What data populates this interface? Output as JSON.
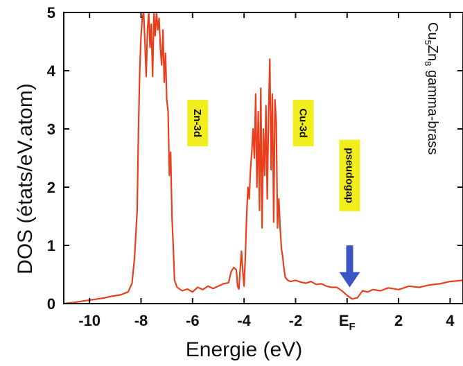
{
  "chart_data": {
    "type": "line",
    "title": "",
    "xlabel": "Energie (eV)",
    "ylabel": "DOS (états/eV.atom)",
    "xlim": [
      -11,
      4.5
    ],
    "ylim": [
      0,
      5
    ],
    "x_ticks": [
      -10,
      -8,
      -6,
      -4,
      -2,
      0,
      2,
      4
    ],
    "x_tick_labels": [
      "-10",
      "-8",
      "-6",
      "-4",
      "-2",
      "E",
      "2",
      "4"
    ],
    "fermi_subscript": "F",
    "y_ticks": [
      0,
      1,
      2,
      3,
      4,
      5
    ],
    "y_tick_labels": [
      "0",
      "1",
      "2",
      "3",
      "4",
      "5"
    ],
    "grid": false,
    "line_color": "#e8401c",
    "side_label": {
      "formula_cu": "Cu",
      "formula_cu_sub": "5",
      "formula_zn": "Zn",
      "formula_zn_sub": "8",
      "rest": " gamma-brass"
    },
    "annotations": [
      {
        "text": "Zn-3d",
        "x": -5.8,
        "y": 3.1,
        "box_color": "#f2ee1e"
      },
      {
        "text": "Cu-3d",
        "x": -1.7,
        "y": 3.1,
        "box_color": "#f2ee1e"
      },
      {
        "text": "pseudogap",
        "x": 0.1,
        "y": 2.2,
        "box_color": "#f2ee1e"
      }
    ],
    "arrow": {
      "x": 0.1,
      "y_start": 1.0,
      "y_end": 0.28,
      "color": "#3a56c4"
    },
    "series": [
      {
        "x": [
          -11,
          -10.6,
          -10.3,
          -10,
          -9.7,
          -9.4,
          -9.1,
          -8.8,
          -8.5,
          -8.35,
          -8.25,
          -8.15,
          -8.1,
          -8.05,
          -8.0,
          -7.95,
          -7.9,
          -7.85,
          -7.8,
          -7.75,
          -7.7,
          -7.65,
          -7.6,
          -7.55,
          -7.5,
          -7.45,
          -7.4,
          -7.35,
          -7.3,
          -7.25,
          -7.2,
          -7.15,
          -7.1,
          -7.05,
          -7.0,
          -6.95,
          -6.9,
          -6.85,
          -6.8,
          -6.75,
          -6.7,
          -6.6,
          -6.4,
          -6.2,
          -6.0,
          -5.8,
          -5.6,
          -5.4,
          -5.2,
          -5.0,
          -4.8,
          -4.6,
          -4.5,
          -4.4,
          -4.3,
          -4.25,
          -4.2,
          -4.15,
          -4.1,
          -4.05,
          -4.0,
          -3.95,
          -3.9,
          -3.85,
          -3.8,
          -3.75,
          -3.7,
          -3.65,
          -3.6,
          -3.55,
          -3.5,
          -3.45,
          -3.4,
          -3.35,
          -3.3,
          -3.25,
          -3.2,
          -3.15,
          -3.1,
          -3.05,
          -3.0,
          -2.95,
          -2.9,
          -2.85,
          -2.8,
          -2.75,
          -2.7,
          -2.65,
          -2.6,
          -2.55,
          -2.5,
          -2.45,
          -2.4,
          -2.3,
          -2.2,
          -2.0,
          -1.8,
          -1.6,
          -1.4,
          -1.2,
          -1.0,
          -0.8,
          -0.6,
          -0.4,
          -0.2,
          0.0,
          0.2,
          0.4,
          0.6,
          0.8,
          1.0,
          1.3,
          1.6,
          2.0,
          2.4,
          2.8,
          3.2,
          3.6,
          4.0,
          4.5
        ],
        "y": [
          0.0,
          0.02,
          0.04,
          0.06,
          0.08,
          0.1,
          0.13,
          0.15,
          0.2,
          0.35,
          0.8,
          1.6,
          3.0,
          4.0,
          4.6,
          4.9,
          5.0,
          4.5,
          3.9,
          4.7,
          5.0,
          4.4,
          4.8,
          3.9,
          5.0,
          4.6,
          5.0,
          4.7,
          4.9,
          4.4,
          4.1,
          4.7,
          3.8,
          4.3,
          3.5,
          3.3,
          2.2,
          2.6,
          1.5,
          1.0,
          0.4,
          0.28,
          0.22,
          0.25,
          0.2,
          0.28,
          0.24,
          0.3,
          0.26,
          0.3,
          0.34,
          0.36,
          0.55,
          0.62,
          0.58,
          0.3,
          0.25,
          0.6,
          0.9,
          0.55,
          0.3,
          0.8,
          1.5,
          2.0,
          1.8,
          2.3,
          2.6,
          3.0,
          2.5,
          3.6,
          2.0,
          3.3,
          1.6,
          3.7,
          1.3,
          3.0,
          2.2,
          3.4,
          1.8,
          3.2,
          4.2,
          2.3,
          3.6,
          1.4,
          3.5,
          3.1,
          1.3,
          1.8,
          1.3,
          0.95,
          0.8,
          0.6,
          0.45,
          0.4,
          0.38,
          0.4,
          0.37,
          0.35,
          0.38,
          0.33,
          0.34,
          0.3,
          0.28,
          0.28,
          0.22,
          0.14,
          0.08,
          0.1,
          0.22,
          0.2,
          0.24,
          0.22,
          0.27,
          0.24,
          0.3,
          0.28,
          0.32,
          0.34,
          0.38,
          0.4
        ]
      }
    ]
  }
}
